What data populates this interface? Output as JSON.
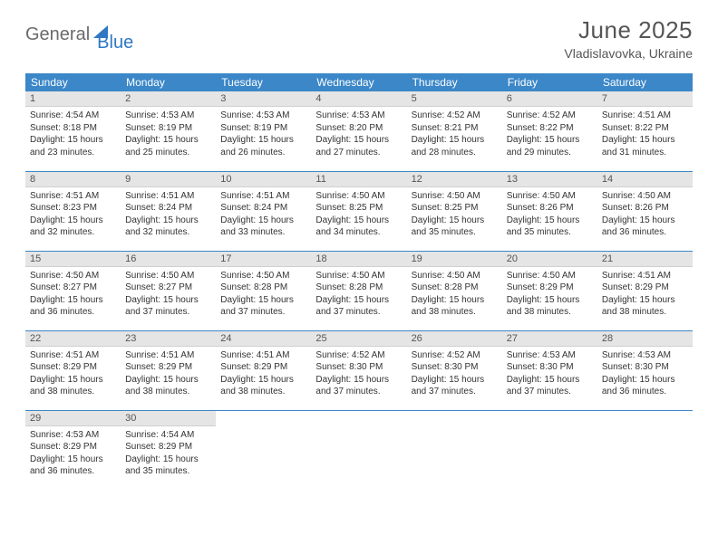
{
  "brand": {
    "part1": "General",
    "part2": "Blue"
  },
  "title": "June 2025",
  "location": "Vladislavovka, Ukraine",
  "colors": {
    "header_bg": "#3b87c8",
    "header_text": "#ffffff",
    "daynum_bg": "#e5e5e5",
    "rule": "#3b87c8",
    "brand_gray": "#6b6b6b",
    "brand_blue": "#2f78c4"
  },
  "weekdays": [
    "Sunday",
    "Monday",
    "Tuesday",
    "Wednesday",
    "Thursday",
    "Friday",
    "Saturday"
  ],
  "days": [
    {
      "n": 1,
      "sr": "4:54 AM",
      "ss": "8:18 PM",
      "dl": "15 hours and 23 minutes."
    },
    {
      "n": 2,
      "sr": "4:53 AM",
      "ss": "8:19 PM",
      "dl": "15 hours and 25 minutes."
    },
    {
      "n": 3,
      "sr": "4:53 AM",
      "ss": "8:19 PM",
      "dl": "15 hours and 26 minutes."
    },
    {
      "n": 4,
      "sr": "4:53 AM",
      "ss": "8:20 PM",
      "dl": "15 hours and 27 minutes."
    },
    {
      "n": 5,
      "sr": "4:52 AM",
      "ss": "8:21 PM",
      "dl": "15 hours and 28 minutes."
    },
    {
      "n": 6,
      "sr": "4:52 AM",
      "ss": "8:22 PM",
      "dl": "15 hours and 29 minutes."
    },
    {
      "n": 7,
      "sr": "4:51 AM",
      "ss": "8:22 PM",
      "dl": "15 hours and 31 minutes."
    },
    {
      "n": 8,
      "sr": "4:51 AM",
      "ss": "8:23 PM",
      "dl": "15 hours and 32 minutes."
    },
    {
      "n": 9,
      "sr": "4:51 AM",
      "ss": "8:24 PM",
      "dl": "15 hours and 32 minutes."
    },
    {
      "n": 10,
      "sr": "4:51 AM",
      "ss": "8:24 PM",
      "dl": "15 hours and 33 minutes."
    },
    {
      "n": 11,
      "sr": "4:50 AM",
      "ss": "8:25 PM",
      "dl": "15 hours and 34 minutes."
    },
    {
      "n": 12,
      "sr": "4:50 AM",
      "ss": "8:25 PM",
      "dl": "15 hours and 35 minutes."
    },
    {
      "n": 13,
      "sr": "4:50 AM",
      "ss": "8:26 PM",
      "dl": "15 hours and 35 minutes."
    },
    {
      "n": 14,
      "sr": "4:50 AM",
      "ss": "8:26 PM",
      "dl": "15 hours and 36 minutes."
    },
    {
      "n": 15,
      "sr": "4:50 AM",
      "ss": "8:27 PM",
      "dl": "15 hours and 36 minutes."
    },
    {
      "n": 16,
      "sr": "4:50 AM",
      "ss": "8:27 PM",
      "dl": "15 hours and 37 minutes."
    },
    {
      "n": 17,
      "sr": "4:50 AM",
      "ss": "8:28 PM",
      "dl": "15 hours and 37 minutes."
    },
    {
      "n": 18,
      "sr": "4:50 AM",
      "ss": "8:28 PM",
      "dl": "15 hours and 37 minutes."
    },
    {
      "n": 19,
      "sr": "4:50 AM",
      "ss": "8:28 PM",
      "dl": "15 hours and 38 minutes."
    },
    {
      "n": 20,
      "sr": "4:50 AM",
      "ss": "8:29 PM",
      "dl": "15 hours and 38 minutes."
    },
    {
      "n": 21,
      "sr": "4:51 AM",
      "ss": "8:29 PM",
      "dl": "15 hours and 38 minutes."
    },
    {
      "n": 22,
      "sr": "4:51 AM",
      "ss": "8:29 PM",
      "dl": "15 hours and 38 minutes."
    },
    {
      "n": 23,
      "sr": "4:51 AM",
      "ss": "8:29 PM",
      "dl": "15 hours and 38 minutes."
    },
    {
      "n": 24,
      "sr": "4:51 AM",
      "ss": "8:29 PM",
      "dl": "15 hours and 38 minutes."
    },
    {
      "n": 25,
      "sr": "4:52 AM",
      "ss": "8:30 PM",
      "dl": "15 hours and 37 minutes."
    },
    {
      "n": 26,
      "sr": "4:52 AM",
      "ss": "8:30 PM",
      "dl": "15 hours and 37 minutes."
    },
    {
      "n": 27,
      "sr": "4:53 AM",
      "ss": "8:30 PM",
      "dl": "15 hours and 37 minutes."
    },
    {
      "n": 28,
      "sr": "4:53 AM",
      "ss": "8:30 PM",
      "dl": "15 hours and 36 minutes."
    },
    {
      "n": 29,
      "sr": "4:53 AM",
      "ss": "8:29 PM",
      "dl": "15 hours and 36 minutes."
    },
    {
      "n": 30,
      "sr": "4:54 AM",
      "ss": "8:29 PM",
      "dl": "15 hours and 35 minutes."
    }
  ],
  "labels": {
    "sunrise": "Sunrise:",
    "sunset": "Sunset:",
    "daylight": "Daylight:"
  },
  "grid": {
    "start_weekday": 0,
    "total_cells": 35
  }
}
